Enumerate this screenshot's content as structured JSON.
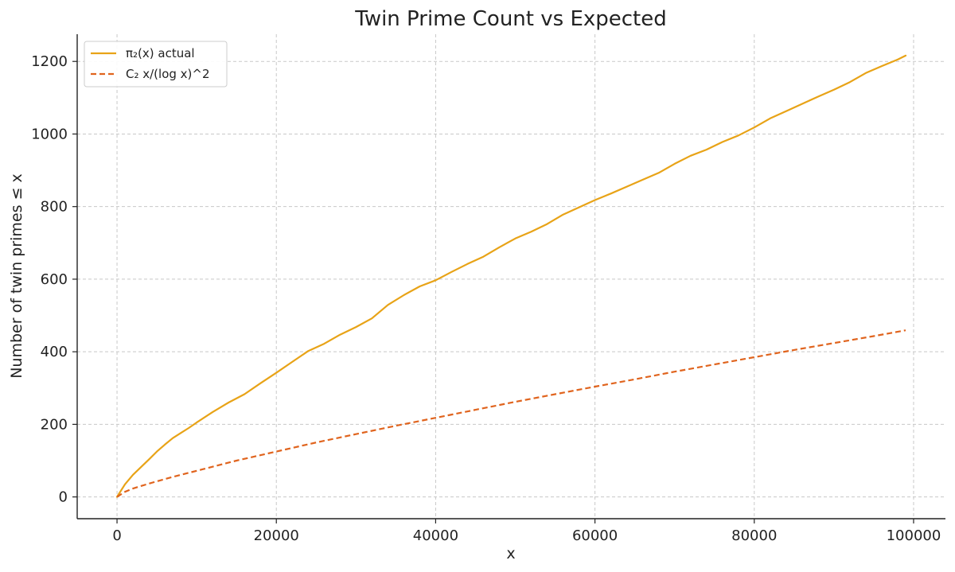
{
  "chart_data": {
    "type": "line",
    "title": "Twin Prime Count vs Expected",
    "xlabel": "x",
    "ylabel": "Number of twin primes ≤ x",
    "xlim": [
      -5000,
      104000
    ],
    "ylim": [
      -60,
      1275
    ],
    "x_ticks": [
      0,
      20000,
      40000,
      60000,
      80000,
      100000
    ],
    "y_ticks": [
      0,
      200,
      400,
      600,
      800,
      1000,
      1200
    ],
    "grid": true,
    "legend_position": "top-left",
    "series": [
      {
        "name": "π₂(x) actual",
        "color": "#E8A317",
        "style": "solid",
        "x": [
          0,
          1000,
          2000,
          3000,
          4000,
          5000,
          6000,
          7000,
          8000,
          9000,
          10000,
          12000,
          14000,
          16000,
          18000,
          20000,
          22000,
          24000,
          26000,
          28000,
          30000,
          32000,
          34000,
          36000,
          38000,
          40000,
          42000,
          44000,
          46000,
          48000,
          50000,
          52000,
          54000,
          56000,
          58000,
          60000,
          62000,
          64000,
          66000,
          68000,
          70000,
          72000,
          74000,
          76000,
          78000,
          80000,
          82000,
          84000,
          86000,
          88000,
          90000,
          92000,
          94000,
          96000,
          98000,
          99000
        ],
        "y": [
          0,
          35,
          61,
          82,
          103,
          125,
          144,
          162,
          176,
          190,
          205,
          234,
          260,
          283,
          313,
          342,
          372,
          402,
          422,
          447,
          468,
          492,
          529,
          556,
          580,
          597,
          620,
          642,
          662,
          688,
          712,
          731,
          752,
          778,
          798,
          818,
          836,
          855,
          874,
          893,
          918,
          940,
          957,
          978,
          996,
          1018,
          1043,
          1063,
          1083,
          1103,
          1122,
          1143,
          1168,
          1187,
          1205,
          1216
        ]
      },
      {
        "name": "C₂ x/(log x)^2",
        "color": "#E0641E",
        "style": "dashed",
        "x": [
          0,
          1000,
          2000,
          3000,
          5000,
          7000,
          10000,
          15000,
          20000,
          25000,
          30000,
          35000,
          40000,
          45000,
          50000,
          55000,
          60000,
          65000,
          70000,
          75000,
          80000,
          85000,
          90000,
          95000,
          99000
        ],
        "y": [
          0,
          14,
          23,
          30,
          43,
          55,
          72,
          100,
          125,
          150,
          173,
          196,
          218,
          240,
          262,
          283,
          304,
          324,
          345,
          365,
          385,
          405,
          424,
          443,
          459
        ]
      }
    ]
  }
}
